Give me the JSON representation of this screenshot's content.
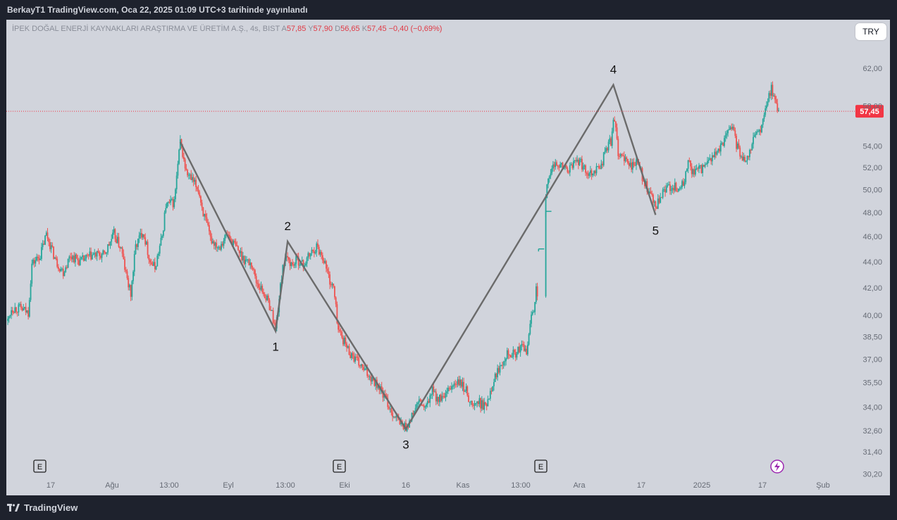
{
  "header": {
    "text": "BerkayT1 TradingView.com, Oca 22, 2025 01:09 UTC+3 tarihinde yayınlandı"
  },
  "legend": {
    "symbol": "İPEK DOĞAL ENERJİ KAYNAKLARI ARAŞTIRMA VE ÜRETİM A.Ş., 4s, BIST",
    "o_label": "A",
    "o": "57,85",
    "h_label": "Y",
    "h": "57,90",
    "l_label": "D",
    "l": "56,65",
    "c_label": "K",
    "c": "57,45",
    "change": "−0,40 (−0,69%)"
  },
  "currency": "TRY",
  "last_price": "57,45",
  "footer": {
    "brand": "TradingView"
  },
  "colors": {
    "up": "#26a69a",
    "down": "#ef5350",
    "background": "#d1d4dc",
    "wave_line": "#6b6b6b",
    "last_price": "#f23645"
  },
  "event_markers": [
    "E",
    "E",
    "E"
  ],
  "chart_data": {
    "type": "candlestick",
    "scale": "log",
    "y_ticks": [
      "62,00",
      "58,00",
      "54,00",
      "52,00",
      "50,00",
      "48,00",
      "46,00",
      "44,00",
      "42,00",
      "40,00",
      "38,50",
      "37,00",
      "35,50",
      "34,00",
      "32,60",
      "31,40",
      "30,20"
    ],
    "x_ticks": [
      "17",
      "Ağu",
      "13:00",
      "Eyl",
      "13:00",
      "Eki",
      "16",
      "Kas",
      "13:00",
      "Ara",
      "17",
      "2025",
      "17",
      "Şub"
    ],
    "wave_labels": [
      "1",
      "2",
      "3",
      "4",
      "5"
    ],
    "wave_points": [
      {
        "label": "",
        "bar": 143,
        "price": 54.4
      },
      {
        "label": "1",
        "bar": 222,
        "price": 38.9
      },
      {
        "label": "2",
        "bar": 232,
        "price": 45.6
      },
      {
        "label": "3",
        "bar": 330,
        "price": 32.7
      },
      {
        "label": "4",
        "bar": 502,
        "price": 60.2
      },
      {
        "label": "5",
        "bar": 537,
        "price": 47.8
      }
    ],
    "anchors": [
      [
        0,
        39.6
      ],
      [
        3,
        40.5
      ],
      [
        10,
        40.5
      ],
      [
        17,
        40.2
      ],
      [
        20,
        43.8
      ],
      [
        27,
        44.5
      ],
      [
        32,
        46.2
      ],
      [
        40,
        44.0
      ],
      [
        46,
        43.2
      ],
      [
        52,
        44.5
      ],
      [
        60,
        44.0
      ],
      [
        70,
        44.5
      ],
      [
        80,
        44.5
      ],
      [
        88,
        46.2
      ],
      [
        94,
        45.0
      ],
      [
        98,
        43.0
      ],
      [
        102,
        41.5
      ],
      [
        106,
        45.2
      ],
      [
        112,
        46.5
      ],
      [
        118,
        44.0
      ],
      [
        122,
        43.5
      ],
      [
        128,
        46.0
      ],
      [
        131,
        48.6
      ],
      [
        138,
        48.9
      ],
      [
        143,
        54.4
      ],
      [
        148,
        51.5
      ],
      [
        154,
        50.6
      ],
      [
        158,
        50.0
      ],
      [
        162,
        48.0
      ],
      [
        168,
        45.8
      ],
      [
        175,
        45.2
      ],
      [
        182,
        46.2
      ],
      [
        190,
        45.0
      ],
      [
        196,
        44.2
      ],
      [
        202,
        43.8
      ],
      [
        206,
        42.5
      ],
      [
        213,
        41.5
      ],
      [
        218,
        40.5
      ],
      [
        222,
        39.0
      ],
      [
        226,
        42.0
      ],
      [
        228,
        43.8
      ],
      [
        232,
        44.2
      ],
      [
        236,
        43.7
      ],
      [
        240,
        44.2
      ],
      [
        245,
        43.7
      ],
      [
        250,
        44.5
      ],
      [
        256,
        45.2
      ],
      [
        262,
        44.2
      ],
      [
        267,
        42.5
      ],
      [
        270,
        42.0
      ],
      [
        274,
        39.0
      ],
      [
        277,
        38.5
      ],
      [
        283,
        37.5
      ],
      [
        290,
        36.8
      ],
      [
        296,
        36.2
      ],
      [
        302,
        35.8
      ],
      [
        308,
        35.2
      ],
      [
        315,
        34.2
      ],
      [
        320,
        33.5
      ],
      [
        326,
        33.0
      ],
      [
        330,
        32.8
      ],
      [
        334,
        33.2
      ],
      [
        338,
        34.0
      ],
      [
        342,
        34.3
      ],
      [
        346,
        33.8
      ],
      [
        352,
        35.0
      ],
      [
        356,
        34.5
      ],
      [
        362,
        34.5
      ],
      [
        368,
        35.3
      ],
      [
        374,
        35.5
      ],
      [
        380,
        35.0
      ],
      [
        385,
        34.0
      ],
      [
        390,
        34.3
      ],
      [
        396,
        34.0
      ],
      [
        402,
        35.5
      ],
      [
        408,
        36.6
      ],
      [
        414,
        37.5
      ],
      [
        420,
        37.3
      ],
      [
        426,
        37.8
      ],
      [
        430,
        37.5
      ],
      [
        432,
        38.5
      ],
      [
        434,
        40.2
      ],
      [
        436,
        40.5
      ],
      [
        438,
        42.0
      ],
      [
        440,
        41.2
      ],
      [
        442,
        48.5
      ],
      [
        446,
        49.6
      ],
      [
        450,
        51.5
      ],
      [
        455,
        52.5
      ],
      [
        460,
        52.0
      ],
      [
        466,
        51.8
      ],
      [
        472,
        52.8
      ],
      [
        477,
        52.0
      ],
      [
        482,
        51.5
      ],
      [
        487,
        51.8
      ],
      [
        492,
        52.2
      ],
      [
        496,
        53.8
      ],
      [
        500,
        54.5
      ],
      [
        502,
        56.5
      ],
      [
        504,
        55.5
      ],
      [
        506,
        53.5
      ],
      [
        512,
        52.5
      ],
      [
        518,
        52.2
      ],
      [
        522,
        52.5
      ],
      [
        526,
        51.2
      ],
      [
        530,
        50.0
      ],
      [
        534,
        49.3
      ],
      [
        537,
        48.3
      ],
      [
        540,
        49.0
      ],
      [
        545,
        50.0
      ],
      [
        550,
        50.3
      ],
      [
        556,
        50.1
      ],
      [
        560,
        50.4
      ],
      [
        564,
        52.5
      ],
      [
        568,
        51.5
      ],
      [
        574,
        51.8
      ],
      [
        580,
        52.2
      ],
      [
        584,
        53.0
      ],
      [
        590,
        53.5
      ],
      [
        596,
        55.5
      ],
      [
        600,
        56.0
      ],
      [
        604,
        54.2
      ],
      [
        608,
        53.0
      ],
      [
        612,
        52.8
      ],
      [
        616,
        54.0
      ],
      [
        620,
        55.2
      ],
      [
        625,
        55.8
      ],
      [
        630,
        58.5
      ],
      [
        633,
        60.0
      ],
      [
        637,
        58.0
      ],
      [
        639,
        57.45
      ]
    ],
    "pre_gap_last_bar": 439,
    "gap_bars": [
      [
        440,
        44.8,
        45.0
      ],
      [
        446,
        47.6,
        48.1
      ]
    ],
    "bar_count": 640,
    "last_price": 57.45
  }
}
